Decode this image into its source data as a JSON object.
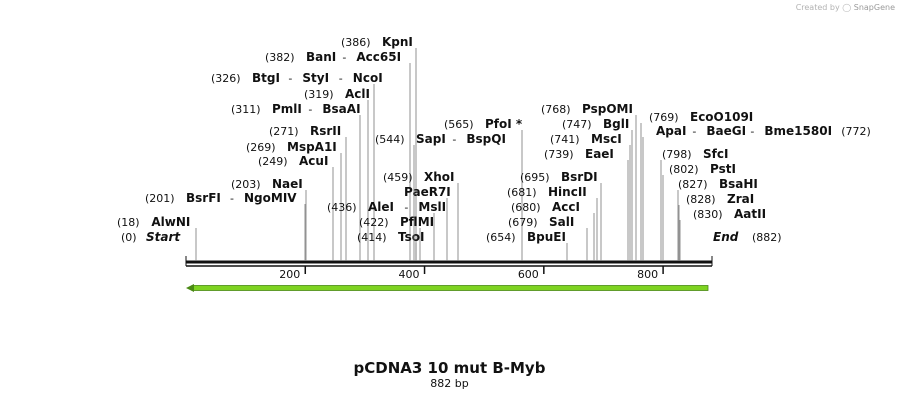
{
  "credit": {
    "prefix": "Created by",
    "brand": "SnapGene"
  },
  "map": {
    "title": "pCDNA3 10 mut B-Myb",
    "length_label": "882 bp",
    "length": 882,
    "start_label": "Start",
    "start_pos": "(0)",
    "end_label": "End",
    "end_pos": "(882)",
    "ticks": [
      {
        "value": 200,
        "label": "200"
      },
      {
        "value": 400,
        "label": "400"
      },
      {
        "value": 600,
        "label": "600"
      },
      {
        "value": 800,
        "label": "800"
      }
    ],
    "feature": {
      "name": "arrow-feature",
      "start": 0,
      "end": 882,
      "direction": "reverse",
      "color": "#7ed321"
    },
    "sites": [
      {
        "pos": "(18)",
        "names": [
          "AlwNI"
        ]
      },
      {
        "pos": "(201)",
        "names": [
          "BsrFI",
          "NgoMIV"
        ]
      },
      {
        "pos": "(203)",
        "names": [
          "NaeI"
        ]
      },
      {
        "pos": "(249)",
        "names": [
          "AcuI"
        ]
      },
      {
        "pos": "(269)",
        "names": [
          "MspA1I"
        ]
      },
      {
        "pos": "(271)",
        "names": [
          "RsrII"
        ]
      },
      {
        "pos": "(311)",
        "names": [
          "PmlI",
          "BsaAI"
        ]
      },
      {
        "pos": "(319)",
        "names": [
          "AclI"
        ]
      },
      {
        "pos": "(326)",
        "names": [
          "BtgI",
          "StyI",
          "NcoI"
        ]
      },
      {
        "pos": "(382)",
        "names": [
          "BanI",
          "Acc65I"
        ]
      },
      {
        "pos": "(386)",
        "names": [
          "KpnI"
        ]
      },
      {
        "pos": "(414)",
        "names": [
          "TsoI"
        ]
      },
      {
        "pos": "(422)",
        "names": [
          "PflMI"
        ]
      },
      {
        "pos": "(436)",
        "names": [
          "AleI",
          "MslI"
        ]
      },
      {
        "pos": "",
        "names": [
          "PaeR7I"
        ]
      },
      {
        "pos": "(459)",
        "names": [
          "XhoI"
        ]
      },
      {
        "pos": "(544)",
        "names": [
          "SapI",
          "BspQI"
        ]
      },
      {
        "pos": "(565)",
        "names": [
          "PfoI *"
        ]
      },
      {
        "pos": "(654)",
        "names": [
          "BpuEI"
        ]
      },
      {
        "pos": "(679)",
        "names": [
          "SalI"
        ]
      },
      {
        "pos": "(680)",
        "names": [
          "AccI"
        ]
      },
      {
        "pos": "(681)",
        "names": [
          "HincII"
        ]
      },
      {
        "pos": "(695)",
        "names": [
          "BsrDI"
        ]
      },
      {
        "pos": "(739)",
        "names": [
          "EaeI"
        ]
      },
      {
        "pos": "(741)",
        "names": [
          "MscI"
        ]
      },
      {
        "pos": "(747)",
        "names": [
          "BglI"
        ]
      },
      {
        "pos": "(768)",
        "names": [
          "PspOMI"
        ]
      },
      {
        "pos": "(772)",
        "names": [
          "ApaI",
          "BaeGI",
          "Bme1580I"
        ]
      },
      {
        "pos": "(769)",
        "names": [
          "EcoO109I"
        ]
      },
      {
        "pos": "(798)",
        "names": [
          "SfcI"
        ]
      },
      {
        "pos": "(802)",
        "names": [
          "PstI"
        ]
      },
      {
        "pos": "(827)",
        "names": [
          "BsaHI"
        ]
      },
      {
        "pos": "(828)",
        "names": [
          "ZraI"
        ]
      },
      {
        "pos": "(830)",
        "names": [
          "AatII"
        ]
      }
    ]
  }
}
